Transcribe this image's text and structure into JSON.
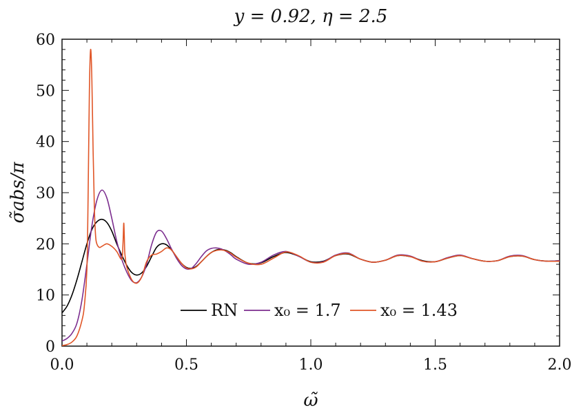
{
  "chart_data": {
    "type": "line",
    "title": "y = 0.92, η = 2.5",
    "xlabel": "ω̃",
    "ylabel": "σ̃abs/π",
    "xlim": [
      0.0,
      2.0
    ],
    "ylim": [
      0,
      60
    ],
    "x_ticks": [
      "0.0",
      "0.5",
      "1.0",
      "1.5",
      "2.0"
    ],
    "y_ticks": [
      "0",
      "10",
      "20",
      "30",
      "40",
      "50",
      "60"
    ],
    "grid": false,
    "legend_position": "lower-center",
    "series": [
      {
        "name": "RN",
        "color": "#000000",
        "x": [
          0.0,
          0.02,
          0.04,
          0.06,
          0.08,
          0.1,
          0.12,
          0.14,
          0.16,
          0.18,
          0.2,
          0.22,
          0.24,
          0.26,
          0.28,
          0.3,
          0.32,
          0.34,
          0.36,
          0.38,
          0.4,
          0.42,
          0.44,
          0.46,
          0.48,
          0.5,
          0.52,
          0.54,
          0.56,
          0.58,
          0.6,
          0.62,
          0.64,
          0.66,
          0.68,
          0.7,
          0.75,
          0.8,
          0.85,
          0.9,
          0.95,
          1.0,
          1.05,
          1.1,
          1.15,
          1.2,
          1.25,
          1.3,
          1.35,
          1.4,
          1.45,
          1.5,
          1.55,
          1.6,
          1.65,
          1.7,
          1.75,
          1.8,
          1.85,
          1.9,
          1.95,
          2.0
        ],
        "values": [
          6.5,
          7.8,
          10.0,
          13.0,
          16.5,
          20.0,
          22.8,
          24.3,
          24.8,
          24.2,
          22.5,
          20.0,
          17.8,
          15.8,
          14.4,
          13.9,
          14.3,
          15.6,
          17.5,
          19.3,
          20.0,
          19.8,
          18.8,
          17.5,
          16.2,
          15.4,
          15.2,
          15.6,
          16.5,
          17.5,
          18.3,
          18.8,
          18.9,
          18.7,
          18.2,
          17.5,
          16.2,
          16.3,
          17.5,
          18.3,
          17.6,
          16.5,
          16.6,
          17.7,
          18.0,
          17.0,
          16.4,
          16.8,
          17.7,
          17.5,
          16.7,
          16.5,
          17.2,
          17.7,
          17.1,
          16.6,
          16.7,
          17.5,
          17.6,
          16.9,
          16.6,
          16.7
        ]
      },
      {
        "name": "x₀ = 1.7",
        "color": "#7b2d8e",
        "x": [
          0.0,
          0.02,
          0.04,
          0.06,
          0.08,
          0.1,
          0.12,
          0.14,
          0.16,
          0.18,
          0.2,
          0.22,
          0.24,
          0.26,
          0.28,
          0.3,
          0.32,
          0.34,
          0.36,
          0.38,
          0.4,
          0.42,
          0.44,
          0.46,
          0.48,
          0.5,
          0.52,
          0.54,
          0.56,
          0.58,
          0.6,
          0.62,
          0.64,
          0.66,
          0.68,
          0.7,
          0.75,
          0.8,
          0.85,
          0.9,
          0.95,
          1.0,
          1.05,
          1.1,
          1.15,
          1.2,
          1.25,
          1.3,
          1.35,
          1.4,
          1.45,
          1.5,
          1.55,
          1.6,
          1.65,
          1.7,
          1.75,
          1.8,
          1.85,
          1.9,
          1.95,
          2.0
        ],
        "values": [
          1.0,
          1.5,
          2.5,
          4.5,
          9.0,
          16.0,
          23.5,
          28.5,
          30.5,
          29.0,
          25.0,
          20.5,
          17.0,
          14.5,
          12.8,
          12.4,
          13.5,
          16.0,
          19.8,
          22.3,
          22.5,
          21.0,
          19.0,
          17.2,
          15.8,
          15.1,
          15.2,
          16.2,
          17.5,
          18.6,
          19.1,
          19.2,
          19.0,
          18.5,
          17.8,
          17.0,
          16.0,
          16.4,
          17.8,
          18.5,
          17.6,
          16.4,
          16.5,
          17.8,
          18.2,
          17.0,
          16.4,
          16.8,
          17.8,
          17.6,
          16.6,
          16.5,
          17.3,
          17.8,
          17.1,
          16.6,
          16.7,
          17.6,
          17.7,
          16.9,
          16.6,
          16.7
        ]
      },
      {
        "name": "x₀ = 1.43",
        "color": "#e05526",
        "x": [
          0.0,
          0.02,
          0.04,
          0.06,
          0.08,
          0.09,
          0.1,
          0.105,
          0.11,
          0.115,
          0.12,
          0.125,
          0.13,
          0.135,
          0.14,
          0.15,
          0.16,
          0.18,
          0.2,
          0.22,
          0.24,
          0.245,
          0.248,
          0.25,
          0.252,
          0.255,
          0.26,
          0.28,
          0.3,
          0.32,
          0.34,
          0.36,
          0.38,
          0.4,
          0.42,
          0.44,
          0.46,
          0.48,
          0.5,
          0.52,
          0.54,
          0.56,
          0.58,
          0.6,
          0.62,
          0.64,
          0.66,
          0.68,
          0.7,
          0.75,
          0.8,
          0.85,
          0.9,
          0.95,
          1.0,
          1.05,
          1.1,
          1.15,
          1.2,
          1.25,
          1.3,
          1.35,
          1.4,
          1.45,
          1.5,
          1.55,
          1.6,
          1.65,
          1.7,
          1.75,
          1.8,
          1.85,
          1.9,
          1.95,
          2.0
        ],
        "values": [
          0.1,
          0.3,
          0.8,
          2.0,
          5.0,
          8.0,
          15.0,
          30.0,
          50.0,
          58.0,
          52.0,
          38.0,
          27.0,
          21.5,
          20.0,
          19.3,
          19.5,
          20.0,
          19.5,
          18.5,
          17.0,
          20.0,
          24.0,
          22.0,
          18.5,
          17.0,
          15.5,
          13.0,
          12.3,
          13.5,
          16.5,
          17.8,
          18.0,
          18.5,
          19.2,
          18.8,
          17.5,
          16.2,
          15.3,
          15.1,
          15.5,
          16.5,
          17.5,
          18.3,
          18.7,
          18.8,
          18.6,
          18.1,
          17.4,
          16.2,
          16.0,
          17.2,
          18.4,
          17.7,
          16.4,
          16.4,
          17.7,
          18.1,
          17.0,
          16.4,
          16.8,
          17.7,
          17.5,
          16.6,
          16.5,
          17.2,
          17.7,
          17.1,
          16.6,
          16.7,
          17.5,
          17.6,
          16.9,
          16.6,
          16.6
        ]
      }
    ]
  }
}
